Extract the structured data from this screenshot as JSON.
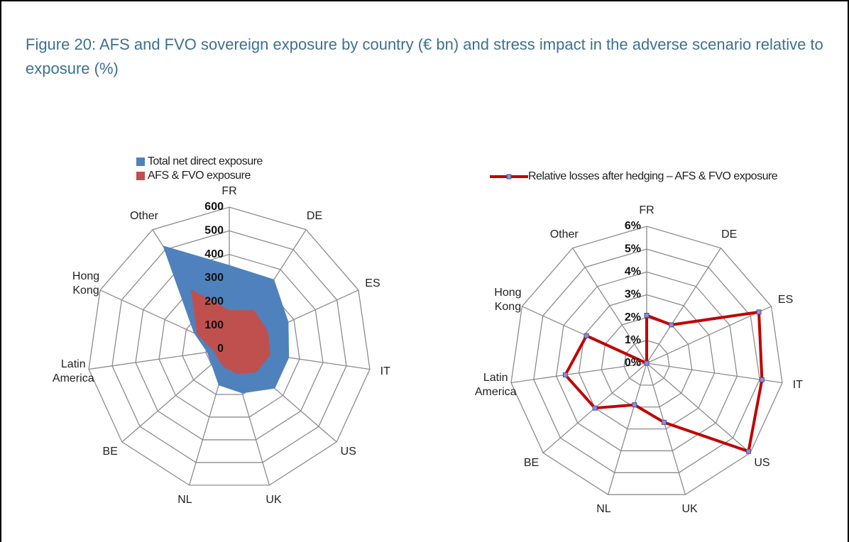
{
  "title": "Figure 20: AFS and FVO sovereign exposure by country (€ bn) and stress impact in the adverse scenario relative to exposure (%)",
  "chart_data": [
    {
      "type": "radar-area",
      "categories": [
        "FR",
        "DE",
        "ES",
        "IT",
        "US",
        "UK",
        "NL",
        "BE",
        "Latin America",
        "Hong Kong",
        "Other"
      ],
      "series": [
        {
          "name": "Total net direct exposure",
          "color": "#4f81bd",
          "values": [
            355,
            350,
            275,
            255,
            255,
            195,
            160,
            100,
            95,
            165,
            520
          ]
        },
        {
          "name": "AFS & FVO exposure",
          "color": "#c0504d",
          "values": [
            165,
            195,
            180,
            175,
            150,
            110,
            80,
            65,
            65,
            150,
            300
          ]
        }
      ],
      "ylim": [
        0,
        600
      ],
      "yticks": [
        0,
        100,
        200,
        300,
        400,
        500,
        600
      ],
      "grid": true
    },
    {
      "type": "radar-line",
      "categories": [
        "FR",
        "DE",
        "ES",
        "IT",
        "US",
        "UK",
        "NL",
        "BE",
        "Latin America",
        "Hong Kong",
        "Other"
      ],
      "series": [
        {
          "name": "Relative losses after hedging – AFS & FVO exposure",
          "color": "#c00000",
          "values": [
            2.1,
            2.0,
            5.4,
            5.1,
            5.9,
            2.7,
            1.9,
            3.0,
            3.6,
            2.9,
            0
          ]
        }
      ],
      "ylim": [
        0,
        6
      ],
      "yticks": [
        {
          "value": 0,
          "label": "0%"
        },
        {
          "value": 1,
          "label": "1%"
        },
        {
          "value": 2,
          "label": "2%"
        },
        {
          "value": 3,
          "label": "3%"
        },
        {
          "value": 4,
          "label": "4%"
        },
        {
          "value": 5,
          "label": "5%"
        },
        {
          "value": 6,
          "label": "6%"
        }
      ],
      "grid": true
    }
  ]
}
